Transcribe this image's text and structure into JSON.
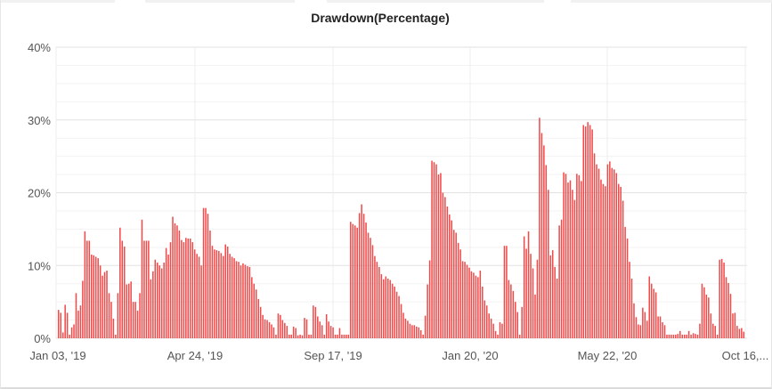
{
  "chart_data": {
    "type": "bar",
    "title": "Drawdown(Percentage)",
    "xlabel": "",
    "ylabel": "",
    "ylim": [
      0,
      40
    ],
    "y_ticks": [
      "0%",
      "10%",
      "20%",
      "30%",
      "40%"
    ],
    "x_tick_labels": [
      "Jan 03, '19",
      "Apr 24, '19",
      "Sep 17, '19",
      "Jan 20, '20",
      "May 22, '20",
      "Oct 16,..."
    ],
    "grid": true,
    "bar_color": "#f04b4b",
    "series": [
      {
        "values": [
          3.9,
          3.5,
          0.8,
          4.6,
          3.5,
          0.5,
          1.5,
          1.9,
          6.2,
          3.8,
          4.5,
          7.9,
          14.7,
          13.4,
          13.4,
          11.5,
          11.4,
          11.2,
          11.0,
          10.0,
          8.6,
          9.1,
          9.3,
          6.2,
          5.0,
          2.7,
          0.5,
          6.2,
          15.2,
          13.4,
          12.6,
          7.4,
          7.5,
          7.8,
          5.0,
          5.0,
          3.8,
          6.2,
          16.3,
          13.4,
          13.4,
          13.4,
          8.1,
          9.2,
          10.8,
          10.4,
          10.0,
          9.6,
          10.4,
          12.4,
          11.5,
          13.2,
          16.7,
          15.8,
          15.5,
          14.8,
          13.5,
          13.2,
          13.8,
          13.7,
          13.7,
          13.2,
          12.2,
          11.6,
          11.2,
          10.0,
          17.9,
          17.9,
          17.1,
          14.8,
          12.7,
          12.2,
          12.1,
          12.0,
          11.7,
          11.3,
          12.9,
          12.6,
          11.6,
          11.2,
          11.0,
          10.6,
          10.5,
          10.0,
          10.3,
          10.1,
          9.9,
          9.8,
          8.4,
          7.5,
          6.7,
          5.4,
          4.3,
          3.2,
          2.6,
          2.5,
          2.2,
          1.9,
          1.5,
          0.5,
          3.4,
          3.2,
          2.5,
          2.1,
          1.7,
          0.5,
          0.5,
          1.6,
          1.4,
          0.4,
          0.5,
          0.4,
          2.8,
          2.6,
          0.5,
          0.5,
          4.5,
          4.3,
          3.0,
          2.3,
          1.8,
          0.5,
          3.3,
          2.3,
          1.7,
          1.5,
          0.5,
          0.5,
          1.4,
          0.5,
          0.5,
          0.5,
          0.5,
          16.0,
          15.7,
          15.5,
          15.2,
          17.2,
          18.4,
          17.1,
          15.9,
          14.5,
          13.8,
          12.8,
          11.3,
          10.5,
          9.8,
          8.8,
          8.1,
          8.5,
          8.2,
          8.0,
          7.5,
          7.1,
          6.4,
          5.8,
          4.7,
          3.5,
          2.7,
          2.4,
          2.0,
          1.8,
          1.8,
          1.6,
          1.5,
          1.1,
          0.5,
          3.1,
          7.4,
          10.7,
          24.4,
          24.2,
          23.9,
          22.5,
          22.7,
          20.0,
          19.4,
          18.1,
          17.0,
          16.2,
          14.9,
          14.5,
          13.1,
          12.2,
          10.6,
          10.5,
          10.1,
          9.7,
          9.2,
          9.0,
          8.6,
          8.4,
          9.3,
          7.1,
          5.2,
          4.5,
          3.4,
          2.7,
          2.0,
          1.0,
          0.5,
          2.2,
          2.0,
          12.7,
          12.7,
          8.0,
          7.4,
          6.5,
          5.0,
          3.6,
          0.5,
          4.3,
          14.0,
          12.3,
          14.7,
          11.6,
          9.6,
          6.0,
          10.8,
          30.3,
          28.2,
          26.5,
          23.8,
          20.4,
          11.4,
          12.1,
          9.8,
          8.2,
          15.5,
          16.3,
          22.8,
          22.6,
          21.4,
          21.7,
          20.4,
          19.0,
          22.6,
          22.4,
          21.6,
          29.3,
          29.1,
          29.7,
          29.3,
          28.7,
          25.4,
          23.9,
          23.3,
          21.8,
          21.2,
          20.9,
          23.9,
          24.3,
          23.4,
          23.2,
          22.7,
          21.2,
          20.8,
          18.9,
          15.3,
          13.7,
          10.5,
          8.2,
          4.8,
          2.9,
          1.9,
          1.8,
          4.2,
          3.6,
          2.4,
          8.5,
          7.5,
          6.8,
          6.3,
          3.0,
          3.0,
          2.2,
          1.8,
          0.5,
          0.5,
          0.5,
          0.5,
          0.5,
          0.6,
          1.0,
          0.5,
          0.5,
          0.5,
          1.0,
          0.5,
          0.7,
          0.6,
          0.5,
          2.0,
          7.5,
          7.0,
          6.0,
          5.6,
          3.4,
          2.0,
          1.7,
          0.5,
          10.8,
          10.9,
          10.4,
          8.4,
          7.6,
          6.1,
          3.4,
          3.5,
          1.7,
          1.3,
          1.4,
          0.9
        ]
      }
    ]
  }
}
